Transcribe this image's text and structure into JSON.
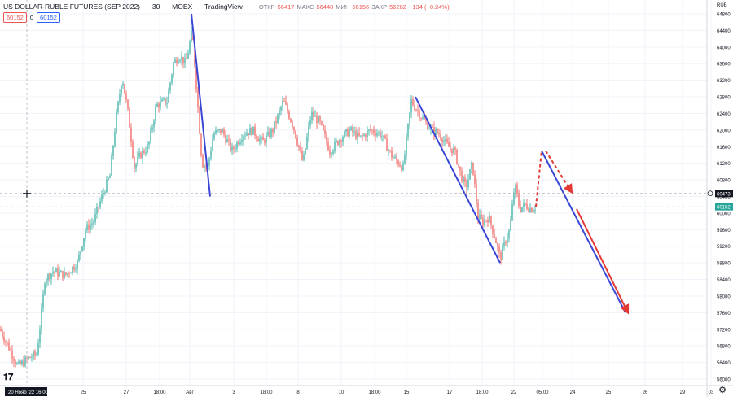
{
  "header": {
    "title": "US DOLLAR-RUBLE FUTURES (SEP 2022)",
    "interval": "30",
    "exchange": "MOEX",
    "source": "TradingView",
    "ohlc": {
      "open_label": "ОТКР",
      "open": "56417",
      "high_label": "МАКС",
      "high": "56440",
      "low_label": "МИН",
      "low": "56156",
      "close_label": "ЗАКР",
      "close": "56282",
      "change": "−134 (−0.24%)"
    },
    "price_box_red": "60152",
    "zero": "0",
    "price_box_blue": "60152"
  },
  "currency": "RUB",
  "crosshair": {
    "price": "60473",
    "time": "20 Нояб '22   16:00"
  },
  "last_price": "60152",
  "colors": {
    "up": "#26a69a",
    "down": "#ef5350",
    "trend": "#3a47d6",
    "forecast": "#e53935",
    "grid": "#f0f3fa"
  },
  "chart_data": {
    "type": "candlestick",
    "y_ticks": [
      "64800",
      "64400",
      "64000",
      "63600",
      "63200",
      "62800",
      "62400",
      "62000",
      "61600",
      "61200",
      "60800",
      "60400",
      "60000",
      "59600",
      "59200",
      "58800",
      "58400",
      "58000",
      "57600",
      "57200",
      "56800",
      "56400",
      "56000"
    ],
    "ylim": [
      55920,
      64960
    ],
    "x_ticks": [
      "25",
      "27",
      "18:00",
      "Авг",
      "3",
      "18:00",
      "8",
      "10",
      "18:00",
      "15",
      "17",
      "18:00",
      "22",
      "05:00",
      "24",
      "25",
      "26",
      "29",
      "03"
    ],
    "path_keypoints": [
      [
        0,
        57200
      ],
      [
        10,
        56800
      ],
      [
        22,
        56300
      ],
      [
        35,
        56500
      ],
      [
        45,
        56600
      ],
      [
        50,
        57400
      ],
      [
        55,
        58400
      ],
      [
        65,
        58600
      ],
      [
        80,
        58500
      ],
      [
        95,
        58800
      ],
      [
        105,
        59600
      ],
      [
        115,
        59800
      ],
      [
        125,
        60400
      ],
      [
        135,
        60900
      ],
      [
        142,
        62200
      ],
      [
        150,
        63300
      ],
      [
        158,
        62300
      ],
      [
        165,
        61100
      ],
      [
        172,
        61400
      ],
      [
        182,
        61600
      ],
      [
        192,
        62600
      ],
      [
        205,
        62700
      ],
      [
        213,
        63600
      ],
      [
        220,
        63800
      ],
      [
        228,
        63600
      ],
      [
        236,
        64400
      ],
      [
        242,
        62800
      ],
      [
        248,
        61200
      ],
      [
        255,
        61100
      ],
      [
        262,
        61900
      ],
      [
        272,
        62000
      ],
      [
        285,
        61500
      ],
      [
        298,
        61900
      ],
      [
        310,
        62000
      ],
      [
        322,
        61700
      ],
      [
        335,
        62000
      ],
      [
        348,
        62700
      ],
      [
        360,
        62100
      ],
      [
        372,
        61200
      ],
      [
        382,
        62400
      ],
      [
        392,
        62200
      ],
      [
        405,
        61500
      ],
      [
        418,
        61800
      ],
      [
        430,
        62000
      ],
      [
        442,
        61800
      ],
      [
        455,
        62000
      ],
      [
        468,
        61900
      ],
      [
        480,
        61400
      ],
      [
        495,
        61100
      ],
      [
        505,
        62700
      ],
      [
        518,
        62300
      ],
      [
        530,
        62000
      ],
      [
        540,
        61900
      ],
      [
        550,
        61600
      ],
      [
        558,
        61500
      ],
      [
        566,
        60900
      ],
      [
        572,
        60600
      ],
      [
        580,
        61200
      ],
      [
        587,
        59900
      ],
      [
        593,
        59800
      ],
      [
        600,
        59900
      ],
      [
        608,
        59400
      ],
      [
        614,
        58900
      ],
      [
        620,
        59300
      ],
      [
        626,
        59600
      ],
      [
        632,
        60700
      ],
      [
        638,
        60100
      ],
      [
        645,
        60200
      ],
      [
        652,
        60100
      ],
      [
        658,
        60150
      ]
    ],
    "trendlines": [
      {
        "from": [
          235,
          64800
        ],
        "to": [
          258,
          60400
        ]
      },
      {
        "from": [
          510,
          62800
        ],
        "to": [
          614,
          58800
        ]
      },
      {
        "from": [
          665,
          61500
        ],
        "to": [
          768,
          57600
        ]
      }
    ],
    "forecast_segments": [
      {
        "from": [
          658,
          60150
        ],
        "to": [
          665,
          61500
        ],
        "dashed": true
      },
      {
        "from": [
          670,
          61500
        ],
        "to": [
          702,
          60500
        ],
        "dashed": true,
        "arrow": true
      },
      {
        "from": [
          708,
          60100
        ],
        "to": [
          771,
          57600
        ],
        "dashed": false,
        "arrow": true
      }
    ]
  }
}
